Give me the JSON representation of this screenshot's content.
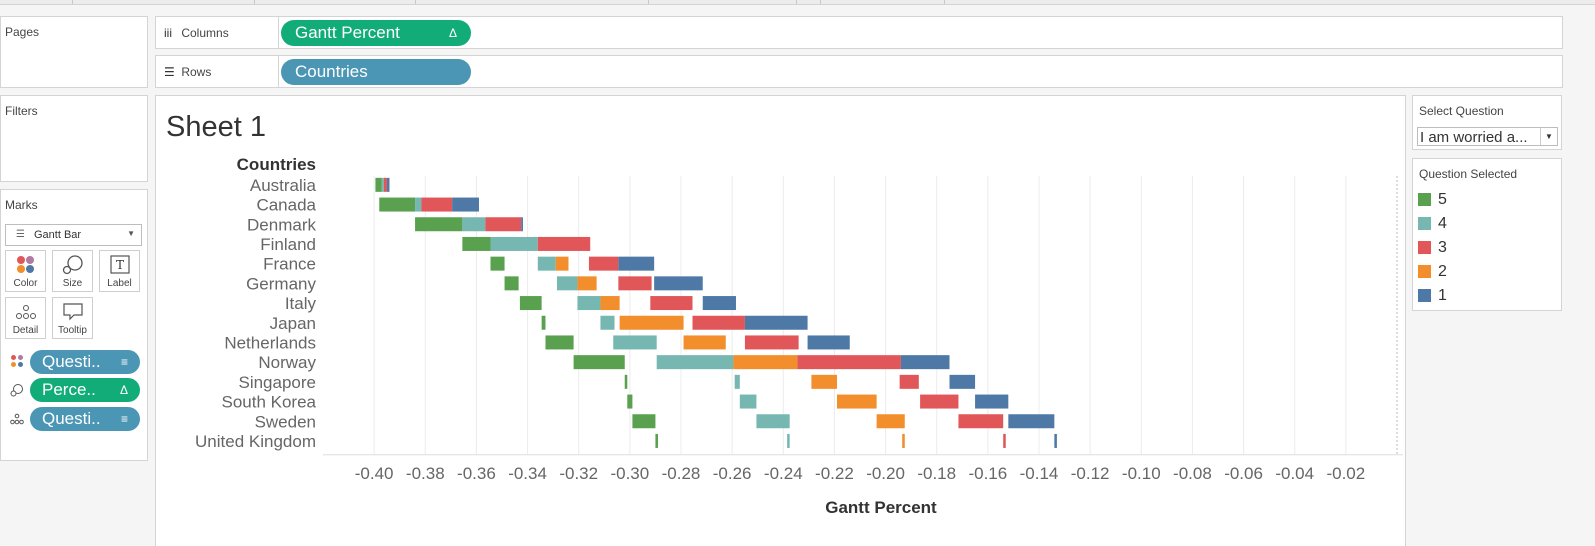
{
  "shelves": {
    "pages_title": "Pages",
    "filters_title": "Filters",
    "columns_label": "Columns",
    "rows_label": "Rows",
    "columns_pill": "Gantt Percent",
    "rows_pill": "Countries",
    "delta_symbol": "Δ"
  },
  "marks": {
    "title": "Marks",
    "mark_type": "Gantt Bar",
    "buttons": {
      "color": "Color",
      "size": "Size",
      "label": "Label",
      "detail": "Detail",
      "tooltip": "Tooltip"
    },
    "pills": [
      {
        "text": "Questi..",
        "end": "≡",
        "color": "#4a96b4",
        "icon": "color-icon"
      },
      {
        "text": "Perce..",
        "end": "Δ",
        "color": "#12ac78",
        "icon": "size-icon"
      },
      {
        "text": "Questi..",
        "end": "≡",
        "color": "#4a96b4",
        "icon": "detail-icon"
      }
    ]
  },
  "sheet": {
    "title": "Sheet 1"
  },
  "select_question": {
    "title": "Select Question",
    "value": "I am worried a..."
  },
  "legend": {
    "title": "Question Selected",
    "items": [
      {
        "label": "5",
        "color": "#59a14f"
      },
      {
        "label": "4",
        "color": "#76b7b2"
      },
      {
        "label": "3",
        "color": "#e15759"
      },
      {
        "label": "2",
        "color": "#f28e2b"
      },
      {
        "label": "1",
        "color": "#4e79a7"
      }
    ]
  },
  "chart_data": {
    "type": "gantt",
    "row_header": "Countries",
    "xlabel": "Gantt Percent",
    "xlim": [
      -0.42,
      0.0
    ],
    "xticks": [
      -0.4,
      -0.38,
      -0.36,
      -0.34,
      -0.32,
      -0.3,
      -0.28,
      -0.26,
      -0.24,
      -0.22,
      -0.2,
      -0.18,
      -0.16,
      -0.14,
      -0.12,
      -0.1,
      -0.08,
      -0.06,
      -0.04,
      -0.02
    ],
    "xtick_labels": [
      "-0.40",
      "-0.38",
      "-0.36",
      "-0.34",
      "-0.32",
      "-0.30",
      "-0.28",
      "-0.26",
      "-0.24",
      "-0.22",
      "-0.20",
      "-0.18",
      "-0.16",
      "-0.14",
      "-0.12",
      "-0.10",
      "-0.08",
      "-0.06",
      "-0.04",
      "-0.02"
    ],
    "grid": true,
    "series_colors": {
      "5": "#59a14f",
      "4": "#76b7b2",
      "3": "#e15759",
      "2": "#f28e2b",
      "1": "#4e79a7"
    },
    "rows": [
      {
        "country": "Australia",
        "bars": [
          {
            "q": "5",
            "start": -0.3995,
            "end": -0.397
          },
          {
            "q": "4",
            "start": -0.397,
            "end": -0.3962
          },
          {
            "q": "3",
            "start": -0.3962,
            "end": -0.395
          },
          {
            "q": "1",
            "start": -0.395,
            "end": -0.394
          }
        ]
      },
      {
        "country": "Canada",
        "bars": [
          {
            "q": "5",
            "start": -0.398,
            "end": -0.384
          },
          {
            "q": "4",
            "start": -0.384,
            "end": -0.3815
          },
          {
            "q": "3",
            "start": -0.3815,
            "end": -0.3695
          },
          {
            "q": "1",
            "start": -0.3695,
            "end": -0.359
          }
        ]
      },
      {
        "country": "Denmark",
        "bars": [
          {
            "q": "5",
            "start": -0.384,
            "end": -0.3655
          },
          {
            "q": "4",
            "start": -0.3655,
            "end": -0.3565
          },
          {
            "q": "3",
            "start": -0.3565,
            "end": -0.3425
          },
          {
            "q": "1",
            "start": -0.3425,
            "end": -0.3418
          }
        ]
      },
      {
        "country": "Finland",
        "bars": [
          {
            "q": "5",
            "start": -0.3655,
            "end": -0.3545
          },
          {
            "q": "4",
            "start": -0.3545,
            "end": -0.336
          },
          {
            "q": "3",
            "start": -0.336,
            "end": -0.3155
          }
        ]
      },
      {
        "country": "France",
        "bars": [
          {
            "q": "5",
            "start": -0.3545,
            "end": -0.349
          },
          {
            "q": "4",
            "start": -0.336,
            "end": -0.329
          },
          {
            "q": "2",
            "start": -0.329,
            "end": -0.324
          },
          {
            "q": "3",
            "start": -0.316,
            "end": -0.3045
          },
          {
            "q": "1",
            "start": -0.3045,
            "end": -0.2905
          }
        ]
      },
      {
        "country": "Germany",
        "bars": [
          {
            "q": "5",
            "start": -0.349,
            "end": -0.3435
          },
          {
            "q": "4",
            "start": -0.3285,
            "end": -0.3205
          },
          {
            "q": "2",
            "start": -0.3205,
            "end": -0.313
          },
          {
            "q": "3",
            "start": -0.3045,
            "end": -0.2915
          },
          {
            "q": "1",
            "start": -0.2905,
            "end": -0.2715
          }
        ]
      },
      {
        "country": "Italy",
        "bars": [
          {
            "q": "5",
            "start": -0.343,
            "end": -0.3345
          },
          {
            "q": "4",
            "start": -0.3205,
            "end": -0.3115
          },
          {
            "q": "2",
            "start": -0.3115,
            "end": -0.304
          },
          {
            "q": "3",
            "start": -0.292,
            "end": -0.2755
          },
          {
            "q": "1",
            "start": -0.2715,
            "end": -0.2585
          }
        ]
      },
      {
        "country": "Japan",
        "bars": [
          {
            "q": "5",
            "start": -0.3345,
            "end": -0.333
          },
          {
            "q": "4",
            "start": -0.3115,
            "end": -0.306
          },
          {
            "q": "2",
            "start": -0.304,
            "end": -0.279
          },
          {
            "q": "3",
            "start": -0.2755,
            "end": -0.255
          },
          {
            "q": "1",
            "start": -0.255,
            "end": -0.2305
          }
        ]
      },
      {
        "country": "Netherlands",
        "bars": [
          {
            "q": "5",
            "start": -0.333,
            "end": -0.322
          },
          {
            "q": "4",
            "start": -0.3065,
            "end": -0.2895
          },
          {
            "q": "2",
            "start": -0.279,
            "end": -0.2625
          },
          {
            "q": "3",
            "start": -0.255,
            "end": -0.234
          },
          {
            "q": "1",
            "start": -0.2305,
            "end": -0.214
          }
        ]
      },
      {
        "country": "Norway",
        "bars": [
          {
            "q": "5",
            "start": -0.322,
            "end": -0.302
          },
          {
            "q": "4",
            "start": -0.2895,
            "end": -0.2595
          },
          {
            "q": "2",
            "start": -0.2595,
            "end": -0.2345
          },
          {
            "q": "3",
            "start": -0.2345,
            "end": -0.194
          },
          {
            "q": "1",
            "start": -0.194,
            "end": -0.175
          }
        ]
      },
      {
        "country": "Singapore",
        "bars": [
          {
            "q": "5",
            "start": -0.302,
            "end": -0.301
          },
          {
            "q": "4",
            "start": -0.259,
            "end": -0.257
          },
          {
            "q": "2",
            "start": -0.229,
            "end": -0.219
          },
          {
            "q": "3",
            "start": -0.1945,
            "end": -0.187
          },
          {
            "q": "1",
            "start": -0.175,
            "end": -0.165
          }
        ]
      },
      {
        "country": "South Korea",
        "bars": [
          {
            "q": "5",
            "start": -0.301,
            "end": -0.299
          },
          {
            "q": "4",
            "start": -0.257,
            "end": -0.2505
          },
          {
            "q": "2",
            "start": -0.219,
            "end": -0.2035
          },
          {
            "q": "3",
            "start": -0.1865,
            "end": -0.1715
          },
          {
            "q": "1",
            "start": -0.165,
            "end": -0.152
          }
        ]
      },
      {
        "country": "Sweden",
        "bars": [
          {
            "q": "5",
            "start": -0.299,
            "end": -0.29
          },
          {
            "q": "4",
            "start": -0.2505,
            "end": -0.2375
          },
          {
            "q": "2",
            "start": -0.2035,
            "end": -0.1925
          },
          {
            "q": "3",
            "start": -0.1715,
            "end": -0.154
          },
          {
            "q": "1",
            "start": -0.152,
            "end": -0.134
          }
        ]
      },
      {
        "country": "United Kingdom",
        "bars": [
          {
            "q": "5",
            "start": -0.29,
            "end": -0.289
          },
          {
            "q": "4",
            "start": -0.2385,
            "end": -0.2375
          },
          {
            "q": "2",
            "start": -0.1935,
            "end": -0.1925
          },
          {
            "q": "3",
            "start": -0.154,
            "end": -0.153
          },
          {
            "q": "1",
            "start": -0.134,
            "end": -0.133
          }
        ]
      }
    ]
  }
}
